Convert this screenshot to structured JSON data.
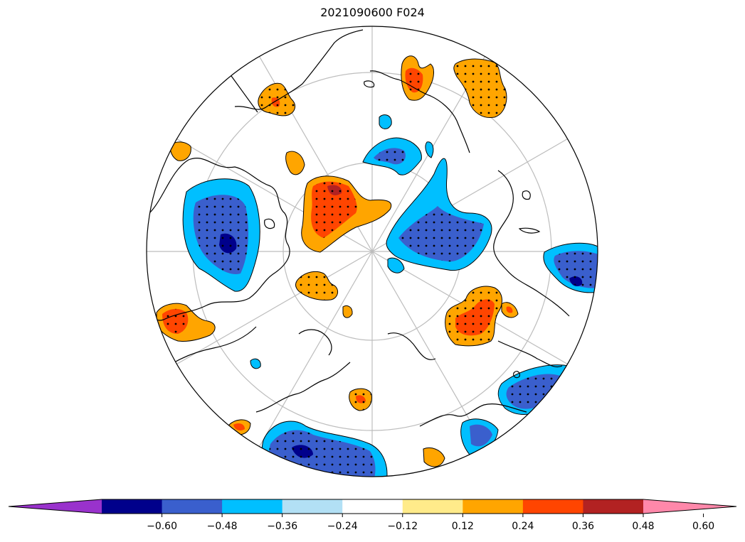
{
  "title": "2021090600 F024",
  "colorbar": {
    "colors": [
      "#9932cc",
      "#00008b",
      "#3a5fcd",
      "#00bfff",
      "#b2e0f5",
      "#ffffff",
      "#ffeb8a",
      "#ffa500",
      "#ff4500",
      "#b22222",
      "#ff88aa"
    ],
    "tick_labels": [
      "−0.60",
      "−0.48",
      "−0.36",
      "−0.24",
      "−0.12",
      "0.12",
      "0.24",
      "0.36",
      "0.48",
      "0.60"
    ],
    "extend": "both"
  },
  "map": {
    "projection": "north-polar-stereographic",
    "graticule": true,
    "stippling": "significant-areas"
  }
}
